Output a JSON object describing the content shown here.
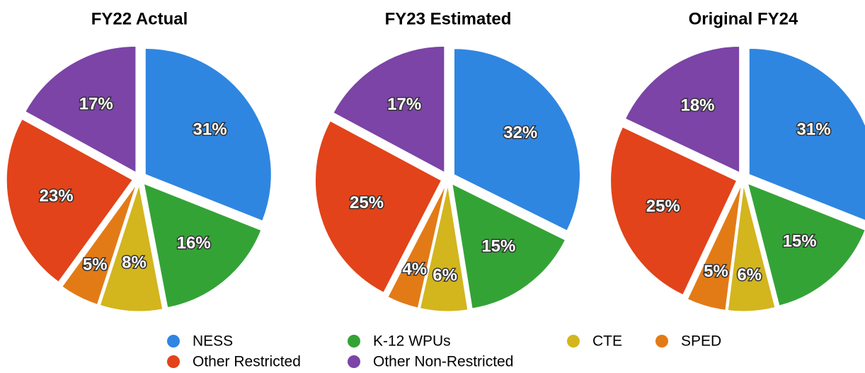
{
  "chart_data": [
    {
      "type": "pie",
      "title": "FY22 Actual",
      "categories": [
        "NESS",
        "K-12 WPUs",
        "CTE",
        "SPED",
        "Other Restricted",
        "Other Non-Restricted"
      ],
      "colors": [
        "#2f86e0",
        "#34a336",
        "#d3b51e",
        "#e27b16",
        "#e2431a",
        "#7b44a6"
      ],
      "values": [
        31,
        16,
        8,
        5,
        23,
        17
      ],
      "value_labels": [
        "31%",
        "16%",
        "8%",
        "5%",
        "23%",
        "17%"
      ]
    },
    {
      "type": "pie",
      "title": "FY23 Estimated",
      "categories": [
        "NESS",
        "K-12 WPUs",
        "CTE",
        "SPED",
        "Other Restricted",
        "Other Non-Restricted"
      ],
      "colors": [
        "#2f86e0",
        "#34a336",
        "#d3b51e",
        "#e27b16",
        "#e2431a",
        "#7b44a6"
      ],
      "values": [
        32,
        15,
        6,
        4,
        25,
        17
      ],
      "value_labels": [
        "32%",
        "15%",
        "6%",
        "4%",
        "25%",
        "17%"
      ]
    },
    {
      "type": "pie",
      "title": "Original FY24",
      "categories": [
        "NESS",
        "K-12 WPUs",
        "CTE",
        "SPED",
        "Other Restricted",
        "Other Non-Restricted"
      ],
      "colors": [
        "#2f86e0",
        "#34a336",
        "#d3b51e",
        "#e27b16",
        "#e2431a",
        "#7b44a6"
      ],
      "values": [
        31,
        15,
        6,
        5,
        25,
        18
      ],
      "value_labels": [
        "31%",
        "15%",
        "6%",
        "5%",
        "25%",
        "18%"
      ]
    }
  ]
}
